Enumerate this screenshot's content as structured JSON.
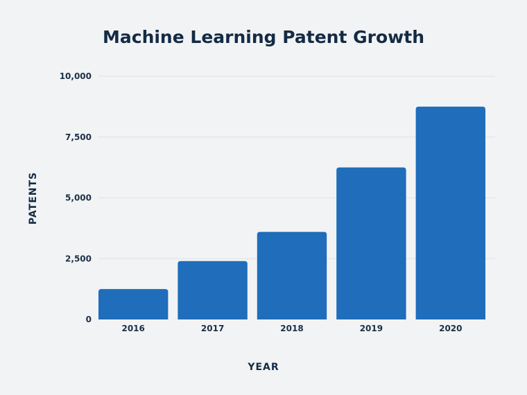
{
  "chart_data": {
    "type": "bar",
    "title": "Machine Learning Patent Growth",
    "xlabel": "YEAR",
    "ylabel": "PATENTS",
    "categories": [
      "2016",
      "2017",
      "2018",
      "2019",
      "2020"
    ],
    "values": [
      1250,
      2400,
      3600,
      6250,
      8750
    ],
    "ylim": [
      0,
      10000
    ],
    "yticks": [
      0,
      2500,
      5000,
      7500,
      10000
    ],
    "ytick_labels": [
      "0",
      "2,500",
      "5,000",
      "7,500",
      "10,000"
    ],
    "grid": true,
    "bar_color": "#1f6dbb",
    "background_color": "#f2f3f4"
  }
}
